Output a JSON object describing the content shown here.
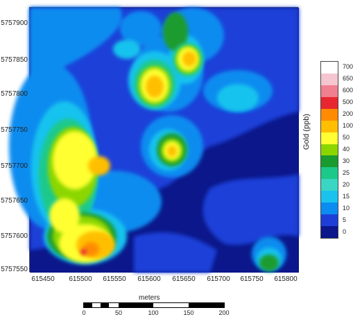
{
  "map": {
    "x_ticks": [
      "615450",
      "615500",
      "615550",
      "615600",
      "615650",
      "615700",
      "615750",
      "615800"
    ],
    "y_ticks": [
      "5757900",
      "5757850",
      "5757800",
      "5757750",
      "5757700",
      "5757650",
      "5757600",
      "5757550"
    ]
  },
  "legend": {
    "title": "Gold (ppb)",
    "levels": [
      {
        "value": "700",
        "color": "#ffffff"
      },
      {
        "value": "650",
        "color": "#f5c6cf"
      },
      {
        "value": "600",
        "color": "#f07f8f"
      },
      {
        "value": "500",
        "color": "#e8262f"
      },
      {
        "value": "200",
        "color": "#ff8c00"
      },
      {
        "value": "100",
        "color": "#ffbf00"
      },
      {
        "value": "50",
        "color": "#ffff33"
      },
      {
        "value": "40",
        "color": "#8cd600"
      },
      {
        "value": "30",
        "color": "#1a9b2e"
      },
      {
        "value": "25",
        "color": "#1dc98a"
      },
      {
        "value": "20",
        "color": "#3ad6c3"
      },
      {
        "value": "15",
        "color": "#19c3ee"
      },
      {
        "value": "10",
        "color": "#0a8cf0"
      },
      {
        "value": "5",
        "color": "#1d3fd8"
      },
      {
        "value": "0",
        "color": "#0b178a"
      }
    ]
  },
  "scalebar": {
    "unit": "meters",
    "labels": [
      "0",
      "50",
      "100",
      "150",
      "200"
    ]
  }
}
